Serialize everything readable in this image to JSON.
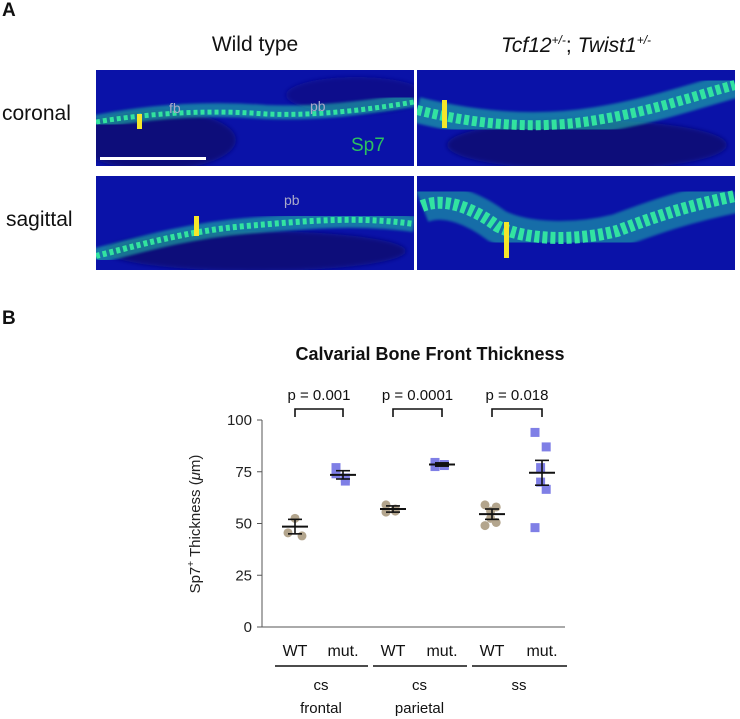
{
  "panel_a": {
    "letter": "A",
    "col_titles": {
      "wild_type": "Wild type"
    },
    "mutant_title": {
      "gene1": "Tcf12",
      "sup1": "+/-",
      "sep": "; ",
      "gene2": "Twist1",
      "sup2": "+/-"
    },
    "row_labels": {
      "coronal": "coronal",
      "sagittal": "sagittal"
    },
    "annotations": {
      "fb": "fb",
      "pb_coronal": "pb",
      "pb_sagittal": "pb",
      "marker": "Sp7"
    },
    "colors": {
      "background": "#0a12a8",
      "marker": "#30e890",
      "bar": "#f5e62a",
      "scale": "#ffffff"
    }
  },
  "panel_b": {
    "letter": "B"
  },
  "chart_data": {
    "type": "scatter",
    "title": "Calvarial Bone Front Thickness",
    "ylabel_prefix": "Sp7",
    "ylabel_sup": "+",
    "ylabel_rest": " Thickness (",
    "ylabel_mu": "μ",
    "ylabel_unit": "m)",
    "ylim": [
      0,
      100
    ],
    "yticks": [
      0,
      25,
      50,
      75,
      100
    ],
    "categories": [
      "WT",
      "mut.",
      "WT",
      "mut.",
      "WT",
      "mut."
    ],
    "groups": [
      {
        "label_line1": "cs",
        "label_line2": "frontal"
      },
      {
        "label_line1": "cs",
        "label_line2": "parietal"
      },
      {
        "label_line1": "ss",
        "label_line2": ""
      }
    ],
    "p_values": [
      "p = 0.001",
      "p = 0.0001",
      "p = 0.018"
    ],
    "series": [
      {
        "category": "WT",
        "group": 0,
        "color": "#b3a58d",
        "mean": 48.5,
        "sem": 3.5,
        "points": [
          45.5,
          52.5,
          44.0
        ]
      },
      {
        "category": "mut.",
        "group": 0,
        "color": "#7f7fe6",
        "mean": 73.5,
        "sem": 2.0,
        "points": [
          77,
          72,
          70.5,
          74
        ]
      },
      {
        "category": "WT",
        "group": 1,
        "color": "#b3a58d",
        "mean": 57.0,
        "sem": 1.5,
        "points": [
          59,
          56,
          57,
          55.5
        ]
      },
      {
        "category": "mut.",
        "group": 1,
        "color": "#7f7fe6",
        "mean": 78.5,
        "sem": 0.8,
        "points": [
          79.5,
          78,
          78.5,
          77.5
        ]
      },
      {
        "category": "WT",
        "group": 2,
        "color": "#b3a58d",
        "mean": 54.5,
        "sem": 2.5,
        "points": [
          59,
          58,
          56,
          52.5,
          50.5,
          49
        ]
      },
      {
        "category": "mut.",
        "group": 2,
        "color": "#7f7fe6",
        "mean": 74.5,
        "sem": 6.0,
        "points": [
          94,
          87,
          77,
          70,
          66.5,
          48
        ]
      }
    ]
  }
}
